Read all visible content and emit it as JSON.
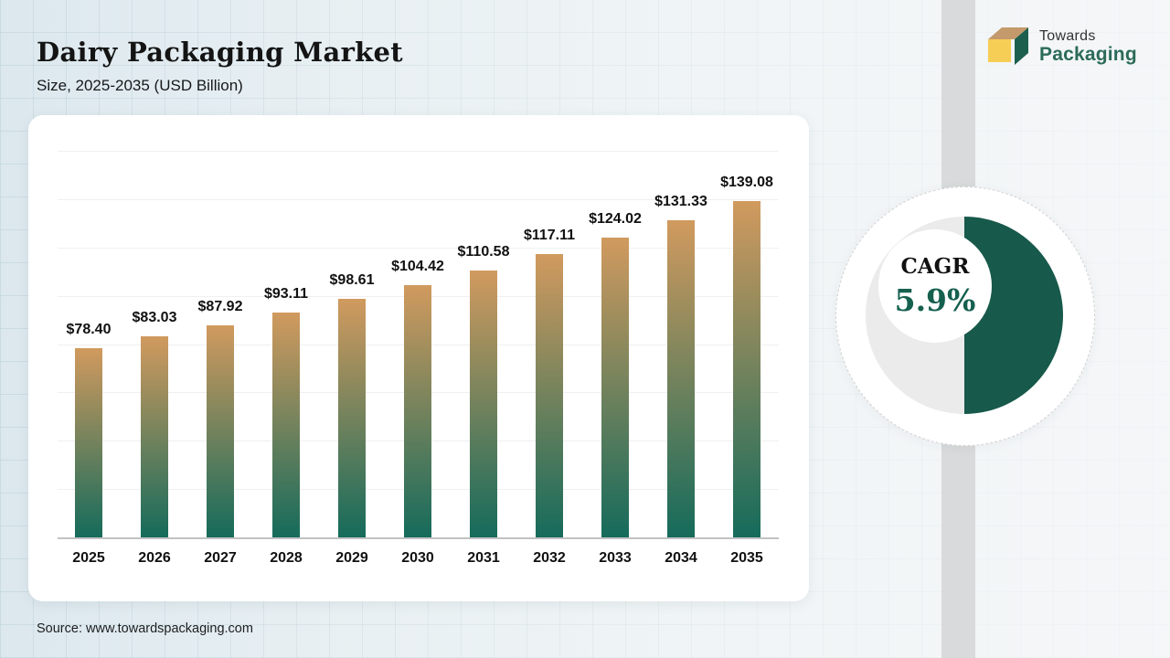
{
  "header": {
    "title": "Dairy Packaging Market",
    "subtitle": "Size, 2025-2035 (USD Billion)"
  },
  "logo": {
    "line1": "Towards",
    "line2": "Packaging"
  },
  "chart_data": {
    "type": "bar",
    "title": "Dairy Packaging Market Size, 2025-2035 (USD Billion)",
    "categories": [
      "2025",
      "2026",
      "2027",
      "2028",
      "2029",
      "2030",
      "2031",
      "2032",
      "2033",
      "2034",
      "2035"
    ],
    "values": [
      78.4,
      83.03,
      87.92,
      93.11,
      98.61,
      104.42,
      110.58,
      117.11,
      124.02,
      131.33,
      139.08
    ],
    "labels": [
      "$78.40",
      "$83.03",
      "$87.92",
      "$93.11",
      "$98.61",
      "$104.42",
      "$110.58",
      "$117.11",
      "$124.02",
      "$131.33",
      "$139.08"
    ],
    "xlabel": "",
    "ylabel": "",
    "ylim": [
      0,
      160
    ],
    "gridline_step": 20,
    "grid": true,
    "legend": false,
    "bar_gradient_top": "#d19a5e",
    "bar_gradient_bottom": "#156b5b"
  },
  "donut": {
    "label": "CAGR",
    "value": "5.9%",
    "fraction": 0.5,
    "color": "#17594b",
    "track_color": "#ebebeb"
  },
  "footer": {
    "source": "Source: www.towardspackaging.com"
  },
  "colors": {
    "accent_green": "#17594b",
    "accent_tan": "#d19a5e",
    "logo_green": "#2b6b58",
    "band_gray": "#d8dadb"
  }
}
